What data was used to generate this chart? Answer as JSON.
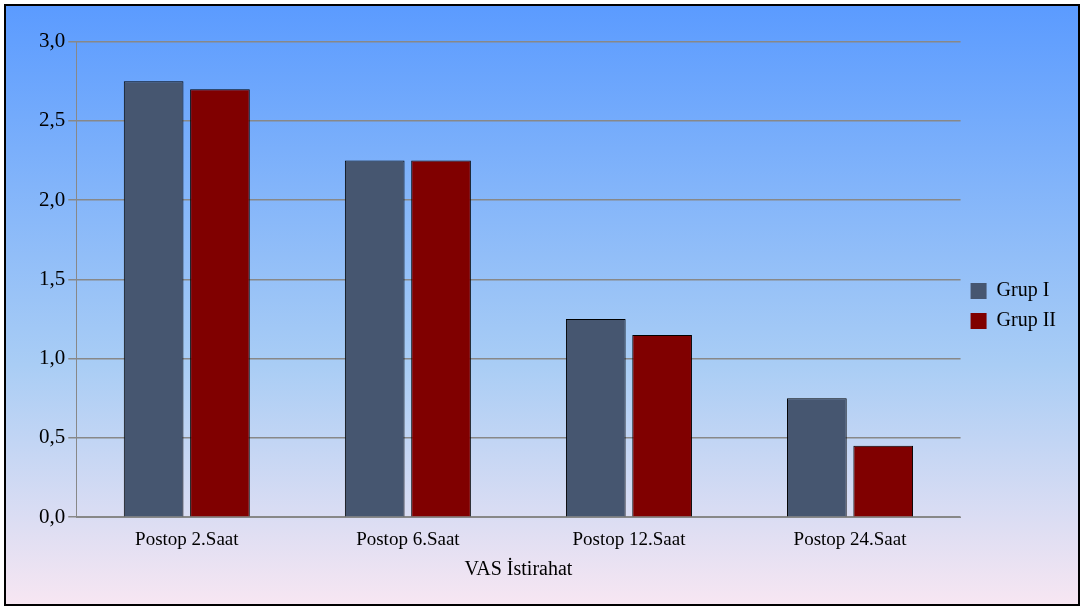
{
  "chart_data": {
    "type": "bar",
    "xlabel": "VAS İstirahat",
    "categories": [
      "Postop 2.Saat",
      "Postop 6.Saat",
      "Postop 12.Saat",
      "Postop 24.Saat"
    ],
    "series": [
      {
        "name": "Grup I",
        "color": "#465670",
        "values": [
          2.75,
          2.25,
          1.25,
          0.75
        ]
      },
      {
        "name": "Grup II",
        "color": "#800000",
        "values": [
          2.7,
          2.25,
          1.15,
          0.45
        ]
      }
    ],
    "ylim": [
      0,
      3
    ],
    "yticks": [
      {
        "value": 0,
        "label": "0,0"
      },
      {
        "value": 0.5,
        "label": "0,5"
      },
      {
        "value": 1,
        "label": "1,0"
      },
      {
        "value": 1.5,
        "label": "1,5"
      },
      {
        "value": 2,
        "label": "2,0"
      },
      {
        "value": 2.5,
        "label": "2,5"
      },
      {
        "value": 3,
        "label": "3,0"
      }
    ],
    "grid": "y",
    "legend": "right"
  }
}
